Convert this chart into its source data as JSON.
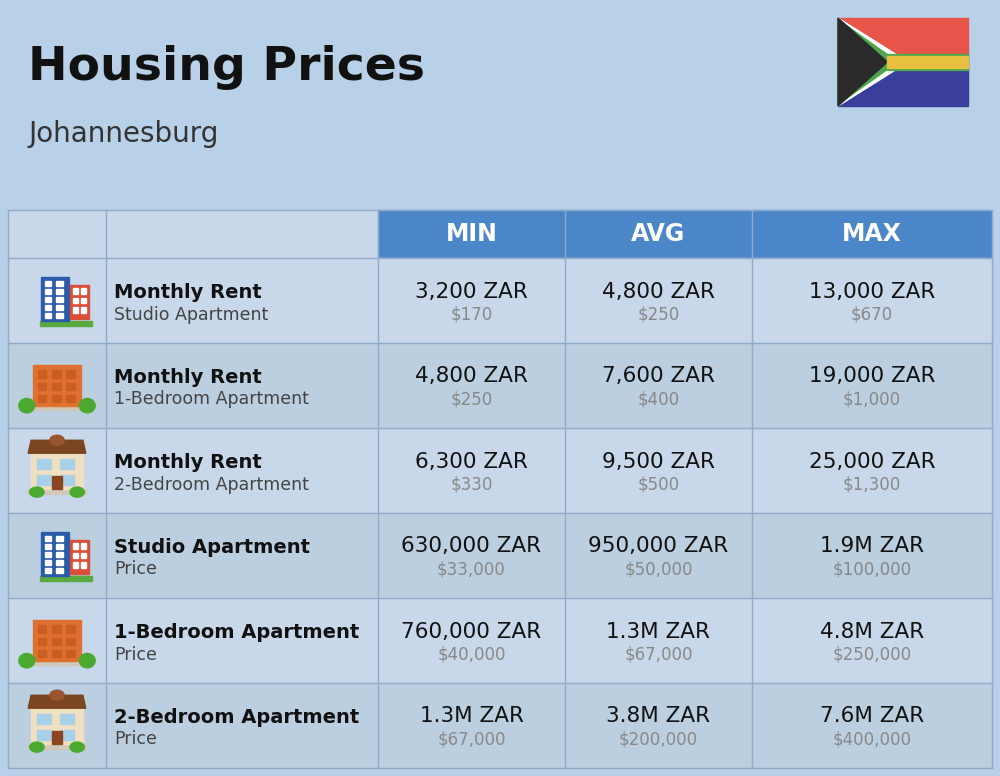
{
  "title": "Housing Prices",
  "subtitle": "Johannesburg",
  "bg_color": "#b8d0e8",
  "header_bg": "#4a86c8",
  "header_text_color": "#ffffff",
  "row_bg_odd": "#c8d8ea",
  "row_bg_even": "#bccfe0",
  "col_headers": [
    "MIN",
    "AVG",
    "MAX"
  ],
  "rows": [
    {
      "bold_label": "Monthly Rent",
      "sub_label": "Studio Apartment",
      "min_zar": "3,200 ZAR",
      "min_usd": "$170",
      "avg_zar": "4,800 ZAR",
      "avg_usd": "$250",
      "max_zar": "13,000 ZAR",
      "max_usd": "$670",
      "icon_type": "blue_tower"
    },
    {
      "bold_label": "Monthly Rent",
      "sub_label": "1-Bedroom Apartment",
      "min_zar": "4,800 ZAR",
      "min_usd": "$250",
      "avg_zar": "7,600 ZAR",
      "avg_usd": "$400",
      "max_zar": "19,000 ZAR",
      "max_usd": "$1,000",
      "icon_type": "orange_mid"
    },
    {
      "bold_label": "Monthly Rent",
      "sub_label": "2-Bedroom Apartment",
      "min_zar": "6,300 ZAR",
      "min_usd": "$330",
      "avg_zar": "9,500 ZAR",
      "avg_usd": "$500",
      "max_zar": "25,000 ZAR",
      "max_usd": "$1,300",
      "icon_type": "beige_house"
    },
    {
      "bold_label": "Studio Apartment",
      "sub_label": "Price",
      "min_zar": "630,000 ZAR",
      "min_usd": "$33,000",
      "avg_zar": "950,000 ZAR",
      "avg_usd": "$50,000",
      "max_zar": "1.9M ZAR",
      "max_usd": "$100,000",
      "icon_type": "blue_tower"
    },
    {
      "bold_label": "1-Bedroom Apartment",
      "sub_label": "Price",
      "min_zar": "760,000 ZAR",
      "min_usd": "$40,000",
      "avg_zar": "1.3M ZAR",
      "avg_usd": "$67,000",
      "max_zar": "4.8M ZAR",
      "max_usd": "$250,000",
      "icon_type": "orange_mid"
    },
    {
      "bold_label": "2-Bedroom Apartment",
      "sub_label": "Price",
      "min_zar": "1.3M ZAR",
      "min_usd": "$67,000",
      "avg_zar": "3.8M ZAR",
      "avg_usd": "$200,000",
      "max_zar": "7.6M ZAR",
      "max_usd": "$400,000",
      "icon_type": "beige_house"
    }
  ]
}
